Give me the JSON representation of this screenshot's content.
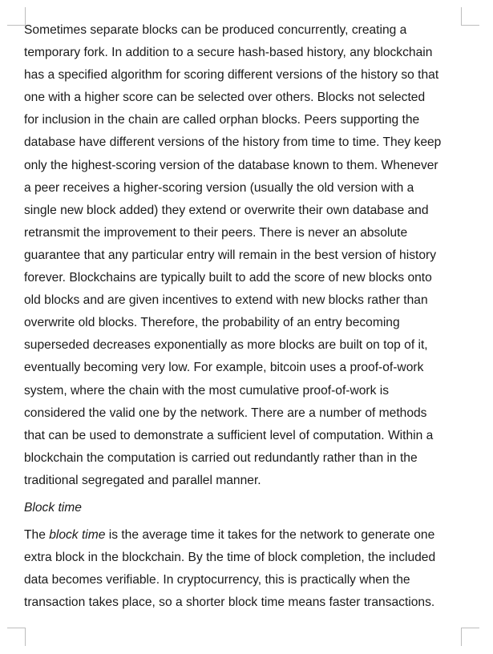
{
  "document": {
    "paragraph1_lines": [
      "Sometimes separate blocks can be produced concurrently, creating a",
      "temporary fork. In addition to a secure hash-based history, any blockchain",
      "has a specified algorithm for scoring different versions of the history so that",
      "one with a higher score can be selected over others. Blocks not selected",
      "for inclusion in the chain are called orphan blocks. Peers supporting the",
      "database have different versions of the history from time to time. They keep",
      "only the highest-scoring version of the database known to them. Whenever",
      "a peer receives a higher-scoring version (usually the old version with a",
      "single new block added) they extend or overwrite their own database and",
      "retransmit the improvement to their peers. There is never an absolute",
      "guarantee that any particular entry will remain in the best version of history",
      "forever. Blockchains are typically built to add the score of new blocks onto",
      "old blocks and are given incentives to extend with new blocks rather than",
      "overwrite old blocks. Therefore, the probability of an entry becoming",
      "superseded decreases exponentially as more blocks are built on top of it,",
      "eventually becoming very low. For example, bitcoin uses a proof-of-work",
      "system, where the chain with the most cumulative proof-of-work is",
      "considered the valid one by the network. There are a number of methods",
      "that can be used to demonstrate a sufficient level of computation. Within a",
      "blockchain the computation is carried out redundantly rather than in the",
      "traditional segregated and parallel manner."
    ],
    "heading": "Block time",
    "paragraph2": {
      "line1_prefix": "The ",
      "line1_em": "block time",
      "line1_suffix": " is the average time it takes for the network to generate one",
      "lines": [
        "extra block in the blockchain. By the time of block completion, the included",
        "data becomes verifiable. In cryptocurrency, this is practically when the",
        "transaction takes place, so a shorter block time means faster transactions."
      ]
    }
  }
}
